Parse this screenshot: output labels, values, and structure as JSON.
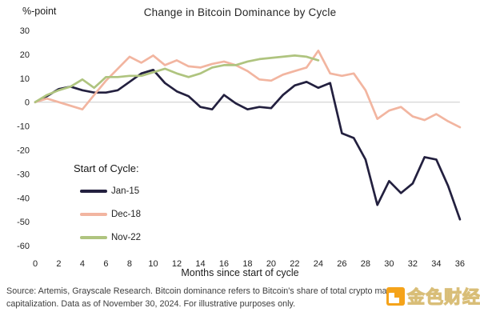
{
  "header": {
    "y_axis_unit": "%-point",
    "title": "Change in Bitcoin Dominance by Cycle"
  },
  "chart_data": {
    "type": "line",
    "title": "Change in Bitcoin Dominance by Cycle",
    "ylabel": "%-point",
    "xlabel": "Months since start of cycle",
    "ylim": [
      -60,
      30
    ],
    "xlim": [
      0,
      36
    ],
    "y_tick_step": 10,
    "x_tick_step": 2,
    "grid": "zero-line-only",
    "zero_line_color": "#cccccc",
    "tick_color": "#1f1f1f",
    "legend_title": "Start of Cycle:",
    "legend_position": "inside-left",
    "x": [
      0,
      1,
      2,
      3,
      4,
      5,
      6,
      7,
      8,
      9,
      10,
      11,
      12,
      13,
      14,
      15,
      16,
      17,
      18,
      19,
      20,
      21,
      22,
      23,
      24,
      25,
      26,
      27,
      28,
      29,
      30,
      31,
      32,
      33,
      34,
      35,
      36
    ],
    "series": [
      {
        "name": "Jan-15",
        "color": "#23203f",
        "values": [
          0,
          2.5,
          5.5,
          6.5,
          5,
          4,
          4,
          5,
          8.5,
          12,
          13.5,
          8,
          4.5,
          2.5,
          -2,
          -3,
          3,
          -0.5,
          -3,
          -2,
          -2.5,
          3,
          7,
          8.5,
          6,
          8,
          -13,
          -15,
          -24,
          -43,
          -33,
          -38,
          -34,
          -23,
          -24,
          -35,
          -49
        ]
      },
      {
        "name": "Dec-18",
        "color": "#f2b5a0",
        "values": [
          0,
          1.5,
          0,
          -1.5,
          -3,
          3,
          9,
          14,
          19,
          16.5,
          19.5,
          15.5,
          17.5,
          15,
          14.5,
          16,
          17,
          15.5,
          13,
          9.5,
          9,
          11.5,
          13,
          14.5,
          21.5,
          12,
          11,
          12,
          5,
          -7,
          -3.5,
          -2,
          -6,
          -7.5,
          -5,
          -8,
          -10.5
        ]
      },
      {
        "name": "Nov-22",
        "color": "#afc47f",
        "values": [
          0,
          3,
          5,
          6.5,
          9.5,
          6,
          10.5,
          10.5,
          11,
          11,
          12.5,
          14,
          12,
          10.5,
          12,
          14.5,
          15.5,
          15.5,
          17,
          18,
          18.5,
          19,
          19.5,
          19,
          17.5
        ]
      }
    ]
  },
  "footer": {
    "source_line1": "Source: Artemis, Grayscale Research. Bitcoin dominance refers to Bitcoin's share of total crypto market",
    "source_line2": "capitalization. Data as of November 30, 2024. For illustrative purposes only.",
    "watermark_text": "金色财经",
    "watermark_color": "#f5a31a"
  }
}
